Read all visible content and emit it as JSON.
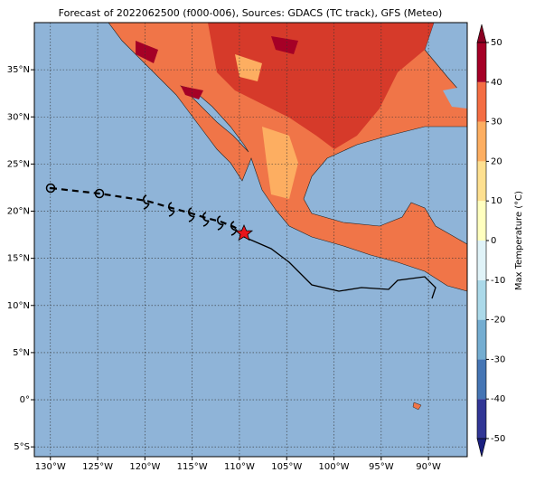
{
  "map": {
    "title": "Forecast of 2022062500 (f000-006), Sources: GDACS (TC track), GFS (Meteo)",
    "lonlim": [
      -131.7,
      -85.9
    ],
    "latlim": [
      -6.04,
      40.0
    ],
    "lonticks": [
      {
        "value": -130,
        "label": "130°W"
      },
      {
        "value": -125,
        "label": "125°W"
      },
      {
        "value": -120,
        "label": "120°W"
      },
      {
        "value": -115,
        "label": "115°W"
      },
      {
        "value": -110,
        "label": "110°W"
      },
      {
        "value": -105,
        "label": "105°W"
      },
      {
        "value": -100,
        "label": "100°W"
      },
      {
        "value": -95,
        "label": "95°W"
      },
      {
        "value": -90,
        "label": "90°W"
      }
    ],
    "latticks": [
      {
        "value": 35,
        "label": "35°N"
      },
      {
        "value": 30,
        "label": "30°N"
      },
      {
        "value": 25,
        "label": "25°N"
      },
      {
        "value": 20,
        "label": "20°N"
      },
      {
        "value": 15,
        "label": "15°N"
      },
      {
        "value": 10,
        "label": "10°N"
      },
      {
        "value": 5,
        "label": "5°N"
      },
      {
        "value": 0,
        "label": "0°"
      },
      {
        "value": -5,
        "label": "5°S"
      }
    ],
    "grid": true,
    "colorbar": {
      "label": "Max Temperature (°C)",
      "lim": [
        -50,
        50
      ],
      "ticks": [
        50,
        40,
        30,
        20,
        10,
        0,
        -10,
        -20,
        -30,
        -40,
        -50
      ],
      "under_color": "#1a1f80",
      "over_color": "#8a0022",
      "colors": [
        "#313695",
        "#4575b4",
        "#74add1",
        "#abd9e9",
        "#e0f3f8",
        "#ffffbf",
        "#fee090",
        "#fdae61",
        "#f46d43",
        "#a50026"
      ]
    }
  }
}
